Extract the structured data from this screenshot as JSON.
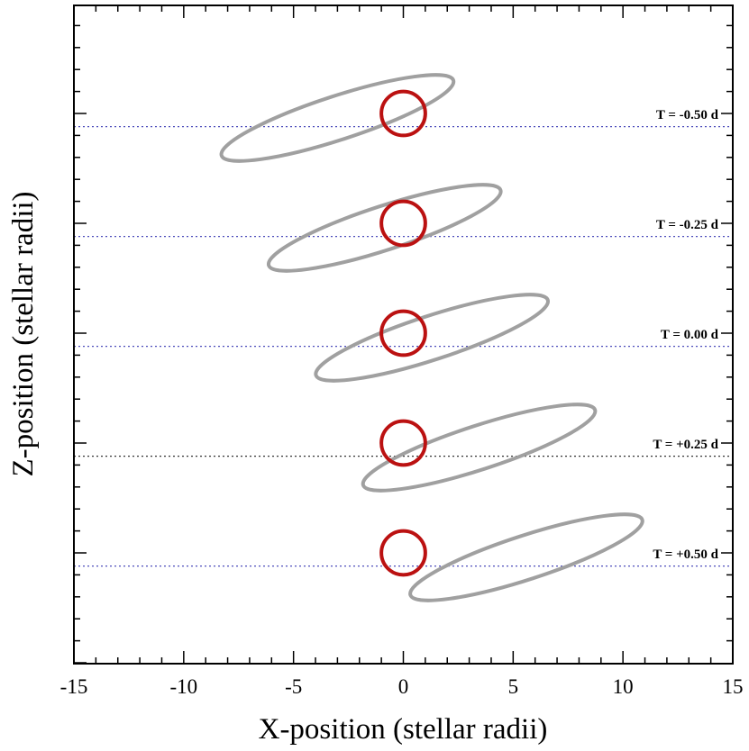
{
  "chart_data": {
    "type": "line",
    "title": "",
    "xlabel": "X-position (stellar radii)",
    "ylabel": "Z-position (stellar radii)",
    "xlim": [
      -15,
      15
    ],
    "x_ticks": [
      -15,
      -10,
      -5,
      0,
      5,
      10,
      15
    ],
    "x_tick_labels": [
      "-15",
      "-10",
      "-5",
      "0",
      "5",
      "10",
      "15"
    ],
    "grid": false,
    "star": {
      "radius": 1.0,
      "color": "#bb1111"
    },
    "orbit_color": "#a0a0a0",
    "line_of_sight_color": "#4d4dbb",
    "epochs": [
      {
        "label": "T = -0.50 d",
        "time_days": -0.5,
        "orbit_center_x": -3.0,
        "orbit_semi_major": 5.55,
        "orbit_semi_minor": 1.0,
        "orbit_tilt_deg": 18,
        "sightline_offset": -0.6,
        "sightline_color": "#4d4dbb"
      },
      {
        "label": "T = -0.25 d",
        "time_days": -0.25,
        "orbit_center_x": -0.85,
        "orbit_semi_major": 5.55,
        "orbit_semi_minor": 1.0,
        "orbit_tilt_deg": 18,
        "sightline_offset": -0.6,
        "sightline_color": "#4d4dbb"
      },
      {
        "label": "T = 0.00 d",
        "time_days": 0.0,
        "orbit_center_x": 1.3,
        "orbit_semi_major": 5.55,
        "orbit_semi_minor": 1.0,
        "orbit_tilt_deg": 18,
        "sightline_offset": -0.6,
        "sightline_color": "#4d4dbb"
      },
      {
        "label": "T = +0.25 d",
        "time_days": 0.25,
        "orbit_center_x": 3.45,
        "orbit_semi_major": 5.55,
        "orbit_semi_minor": 1.0,
        "orbit_tilt_deg": 18,
        "sightline_offset": -0.6,
        "sightline_color": "#333333"
      },
      {
        "label": "T = +0.50 d",
        "time_days": 0.5,
        "orbit_center_x": 5.6,
        "orbit_semi_major": 5.55,
        "orbit_semi_minor": 1.0,
        "orbit_tilt_deg": 18,
        "sightline_offset": -0.6,
        "sightline_color": "#4d4dbb"
      }
    ]
  }
}
